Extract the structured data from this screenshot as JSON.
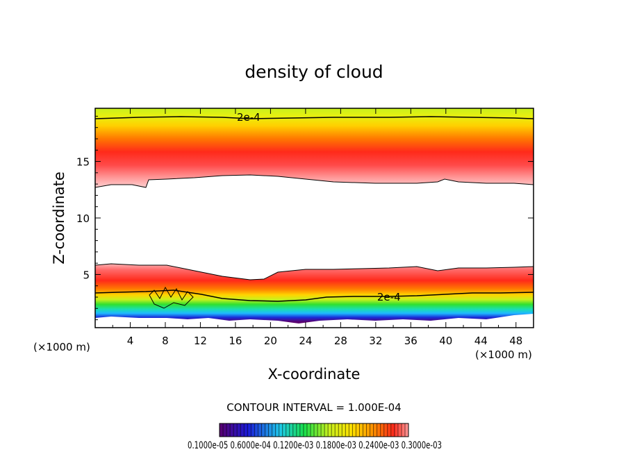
{
  "chart_data": {
    "type": "heatmap",
    "title": "density of cloud",
    "xlabel": "X-coordinate",
    "ylabel": "Z-coordinate",
    "x_unit": "(×1000 m)",
    "y_unit": "(×1000 m)",
    "xlim": [
      0,
      50
    ],
    "ylim": [
      0.3,
      19.7
    ],
    "x_ticks": [
      4,
      8,
      12,
      16,
      20,
      24,
      28,
      32,
      36,
      40,
      44,
      48
    ],
    "y_ticks": [
      5,
      10,
      15
    ],
    "contour_labels": [
      {
        "text": "2e-4",
        "x": 17.5,
        "y": 18.9
      },
      {
        "text": "2e-4",
        "x": 33.5,
        "y": 3.0
      }
    ],
    "contour_interval": "CONTOUR INTERVAL = 1.000E-04",
    "colorbar_labels": "0.1000e-05 0.6000e-04 0.1200e-03 0.1800e-03 0.2400e-03 0.3000e-03",
    "colormap": [
      "#5a0070",
      "#1a1ad8",
      "#1fc8e8",
      "#19e04a",
      "#c8f01e",
      "#ffe000",
      "#ff8a00",
      "#ff2a1a",
      "#ff9a9a",
      "#ffffff"
    ]
  }
}
